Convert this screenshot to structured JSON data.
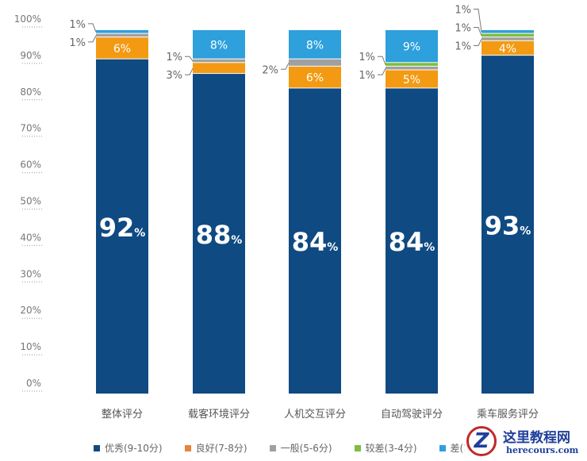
{
  "chart_data": {
    "type": "bar",
    "stacked": true,
    "categories": [
      "整体评分",
      "载客环境评分",
      "人机交互评分",
      "自动驾驶评分",
      "乘车服务评分"
    ],
    "series": [
      {
        "name": "优秀(9-10分)",
        "color": "#0f4a82",
        "values": [
          92,
          88,
          84,
          84,
          93
        ]
      },
      {
        "name": "良好(7-8分)",
        "color": "#f39a12",
        "values": [
          6,
          3,
          6,
          5,
          4
        ]
      },
      {
        "name": "一般(5-6分)",
        "color": "#a0a0a0",
        "values": [
          1,
          1,
          2,
          1,
          1
        ]
      },
      {
        "name": "较差(3-4分)",
        "color": "#7dbe3c",
        "values": [
          0,
          0,
          0,
          1,
          1
        ]
      },
      {
        "name": "差(1",
        "color": "#2ea0dc",
        "values": [
          1,
          8,
          8,
          9,
          1
        ]
      }
    ],
    "ylim": [
      0,
      100
    ],
    "yticks": [
      "0%",
      "10%",
      "20%",
      "30%",
      "40%",
      "50%",
      "60%",
      "70%",
      "80%",
      "90%",
      "100%"
    ],
    "legend": "bottom",
    "grid": false
  },
  "watermark": {
    "text": "这里教程网",
    "url_text": "herecours.com"
  }
}
